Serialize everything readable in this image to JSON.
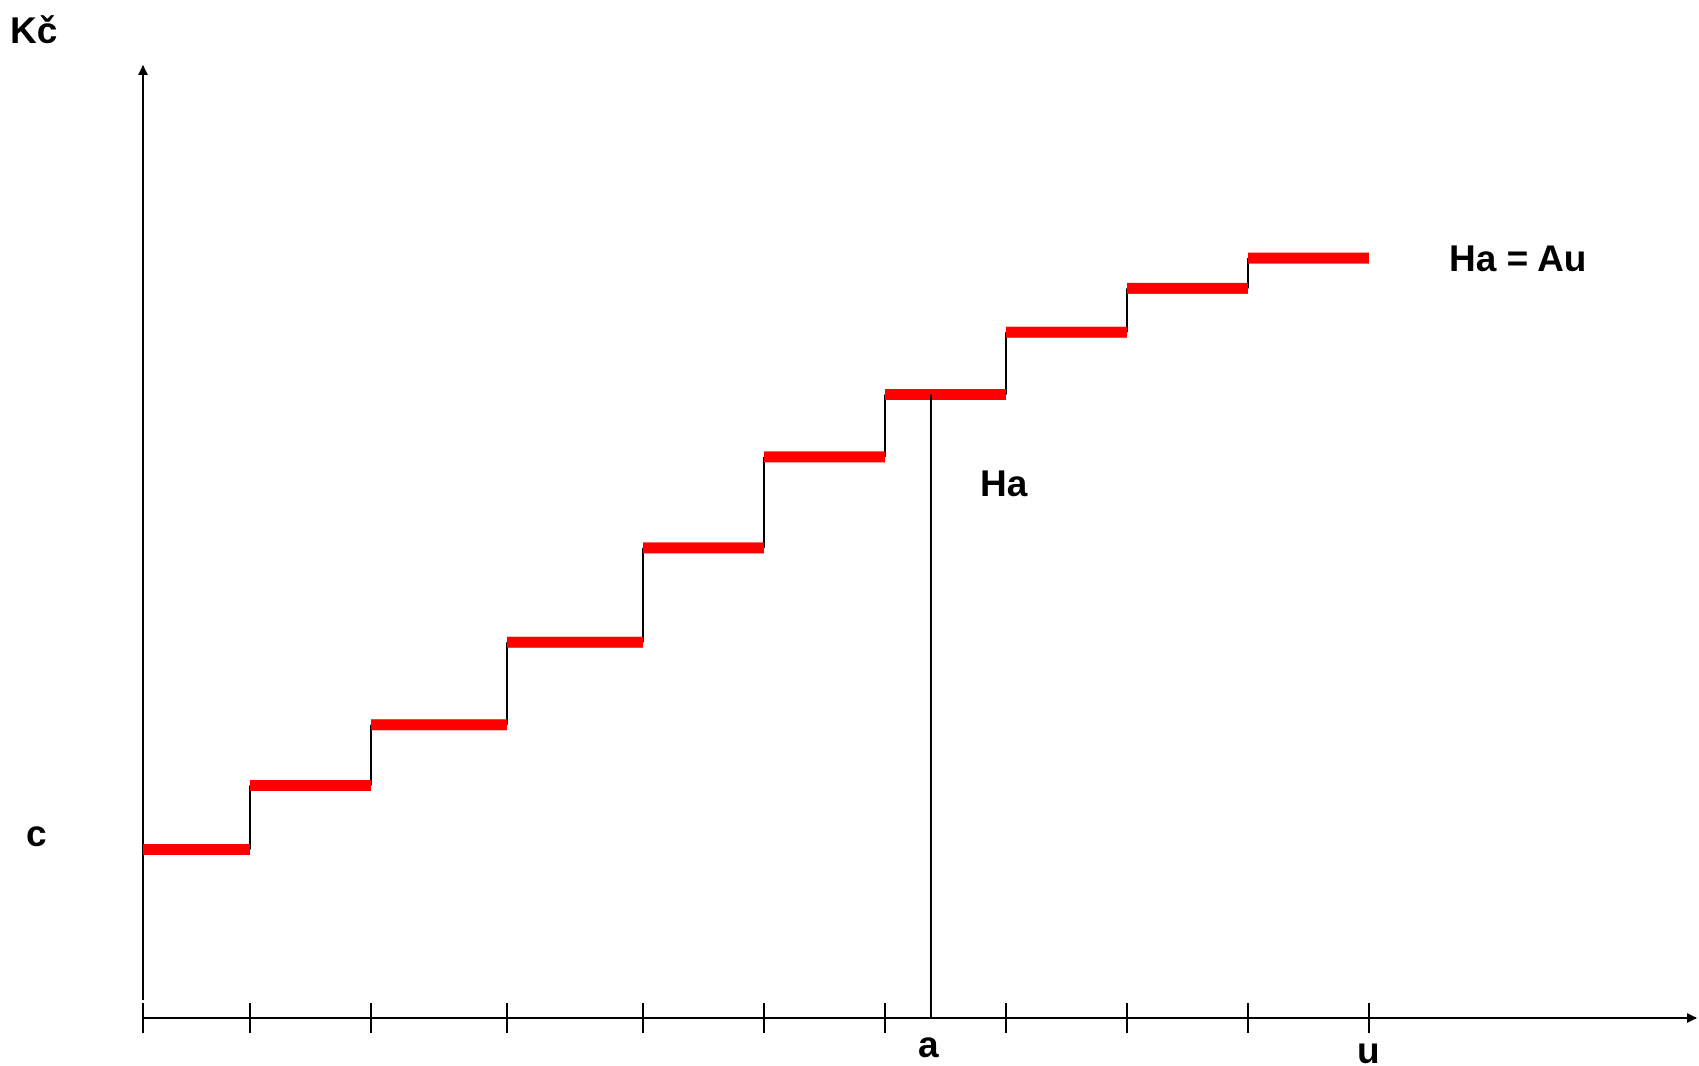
{
  "labels": {
    "y_axis": "Kč",
    "y_c": "c",
    "x_a": "a",
    "x_u": "u",
    "ha": "Ha",
    "ha_eq_au": "Ha = Au"
  },
  "colors": {
    "step": "#ff0000",
    "axis": "#000000",
    "background": "#ffffff"
  },
  "chart_data": {
    "type": "line",
    "subtype": "step",
    "title": "",
    "xlabel": "",
    "ylabel": "Kč",
    "ylim": [
      0,
      10
    ],
    "x_ticks": [
      0,
      1,
      2,
      3,
      4,
      5,
      6,
      7,
      8,
      9,
      10
    ],
    "steps": [
      {
        "x_start": 0,
        "x_end": 1,
        "y": 1.0
      },
      {
        "x_start": 1,
        "x_end": 2,
        "y": 1.38
      },
      {
        "x_start": 2,
        "x_end": 3,
        "y": 1.74
      },
      {
        "x_start": 3,
        "x_end": 4,
        "y": 2.23
      },
      {
        "x_start": 4,
        "x_end": 5,
        "y": 2.79
      },
      {
        "x_start": 5,
        "x_end": 6,
        "y": 3.33
      },
      {
        "x_start": 6,
        "x_end": 7,
        "y": 3.7
      },
      {
        "x_start": 7,
        "x_end": 8,
        "y": 4.07
      },
      {
        "x_start": 8,
        "x_end": 9,
        "y": 4.33
      },
      {
        "x_start": 9,
        "x_end": 10,
        "y": 4.51
      }
    ],
    "markers": [
      {
        "label": "a",
        "x": 6.38,
        "y": 3.7
      },
      {
        "label": "u",
        "x": 10
      }
    ],
    "annotations": [
      "Ha",
      "Ha = Au",
      "c"
    ]
  }
}
